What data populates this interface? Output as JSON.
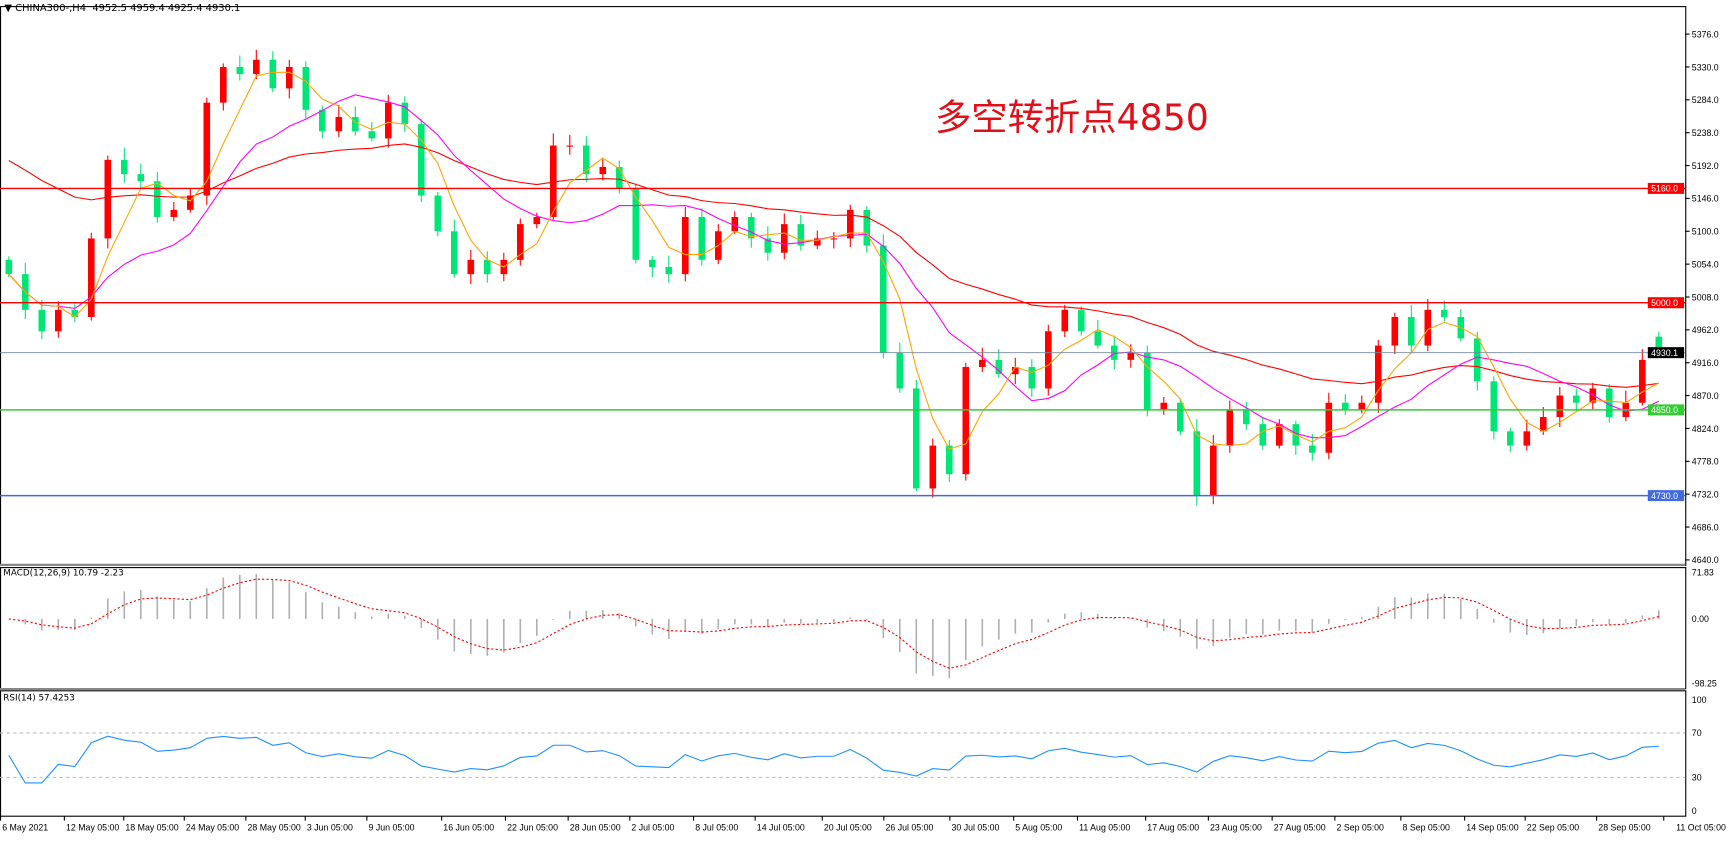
{
  "header": {
    "symbol": "CHINA300-,H4",
    "ohlc": "4952.5 4959.4 4925.4 4930.1"
  },
  "annotation": "多空转折点4850",
  "macd_label": "MACD(12,26,9) 10.79 -2.23",
  "rsi_label": "RSI(14) 57.4253",
  "chart_data": {
    "type": "candlestick",
    "title": "CHINA300-,H4",
    "colors": {
      "bullish": "#ff0000",
      "bearish": "#00e676",
      "ma_short": "#ffa500",
      "ma_mid": "#ff00ff",
      "ma_long": "#ff0000"
    },
    "first_open": 5060,
    "last_candle": {
      "open": 4952.5,
      "high": 4959.4,
      "low": 4925.4,
      "close": 4930.1
    },
    "closes": [
      5040,
      4990,
      4960,
      4990,
      4980,
      5090,
      5200,
      5180,
      5170,
      5120,
      5130,
      5150,
      5280,
      5330,
      5320,
      5340,
      5300,
      5330,
      5270,
      5240,
      5260,
      5240,
      5230,
      5280,
      5250,
      5150,
      5100,
      5040,
      5060,
      5040,
      5060,
      5110,
      5120,
      5220,
      5220,
      5180,
      5190,
      5160,
      5060,
      5050,
      5040,
      5120,
      5060,
      5100,
      5120,
      5090,
      5070,
      5110,
      5080,
      5090,
      5090,
      5130,
      5080,
      4930,
      4880,
      4740,
      4800,
      4760,
      4910,
      4920,
      4900,
      4910,
      4880,
      4960,
      4990,
      4960,
      4940,
      4920,
      4930,
      4850,
      4860,
      4820,
      4730,
      4800,
      4850,
      4830,
      4800,
      4830,
      4800,
      4790,
      4860,
      4850,
      4860,
      4940,
      4980,
      4940,
      4990,
      4980,
      4950,
      4890,
      4820,
      4800,
      4820,
      4840,
      4870,
      4860,
      4880,
      4840,
      4860,
      4920,
      4930.1
    ],
    "ma_long_start": 5210,
    "y_ticks": [
      "5376.0",
      "5330.0",
      "5284.0",
      "5238.0",
      "5192.0",
      "5146.0",
      "5100.0",
      "5054.0",
      "5008.0",
      "4962.0",
      "4916.0",
      "4870.0",
      "4824.0",
      "4778.0",
      "4732.0",
      "4686.0",
      "4640.0"
    ],
    "ylim": [
      4640,
      5376
    ],
    "levels": [
      {
        "value": 5160.0,
        "label": "5160.0",
        "color": "#ff0000"
      },
      {
        "value": 5000.0,
        "label": "5000.0",
        "color": "#ff0000"
      },
      {
        "value": 4850.0,
        "label": "4850.0",
        "color": "#32cd32"
      },
      {
        "value": 4730.0,
        "label": "4730.0",
        "color": "#4169e1"
      }
    ],
    "current_price": {
      "value": 4930.1,
      "label": "4930.1"
    },
    "x_labels": [
      "6 May 2021",
      "12 May 05:00",
      "18 May 05:00",
      "24 May 05:00",
      "28 May 05:00",
      "3 Jun 05:00",
      "9 Jun 05:00",
      "16 Jun 05:00",
      "22 Jun 05:00",
      "28 Jun 05:00",
      "2 Jul 05:00",
      "8 Jul 05:00",
      "14 Jul 05:00",
      "20 Jul 05:00",
      "26 Jul 05:00",
      "30 Jul 05:00",
      "5 Aug 05:00",
      "11 Aug 05:00",
      "17 Aug 05:00",
      "23 Aug 05:00",
      "27 Aug 05:00",
      "2 Sep 05:00",
      "8 Sep 05:00",
      "14 Sep 05:00",
      "22 Sep 05:00",
      "28 Sep 05:00",
      "11 Oct 05:00"
    ],
    "macd": {
      "ticks": [
        "71.83",
        "0.00",
        "-98.25"
      ],
      "range": [
        -98.25,
        71.83
      ]
    },
    "rsi": {
      "ticks": [
        "100",
        "70",
        "30",
        "0"
      ],
      "levels": [
        70,
        30
      ]
    }
  }
}
